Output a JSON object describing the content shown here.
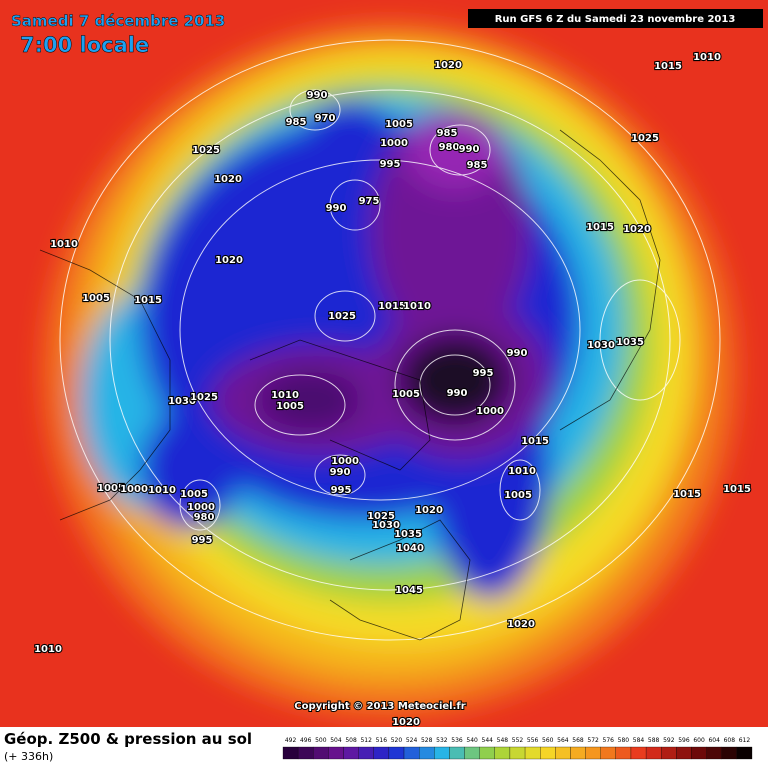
{
  "header": {
    "date": "Samedi 7 décembre 2013",
    "time": "7:00 locale",
    "run": "Run GFS 6 Z du Samedi 23 novembre 2013"
  },
  "map": {
    "pressure_labels": [
      1020,
      1015,
      1010,
      990,
      970,
      985,
      1005,
      985,
      980,
      990,
      1000,
      1025,
      995,
      985,
      1020,
      1025,
      975,
      990,
      1010,
      1020,
      1015,
      1020,
      1005,
      1015,
      1025,
      1015,
      1010,
      990,
      1030,
      1035,
      995,
      990,
      1005,
      1000,
      1010,
      1005,
      1030,
      1025,
      1015,
      1000,
      990,
      995,
      1010,
      1005,
      1015,
      1015,
      1005,
      1000,
      1010,
      1005,
      1000,
      980,
      1020,
      1025,
      1030,
      1035,
      1040,
      1045,
      995,
      1020,
      1010,
      1020
    ],
    "copyright": "Copyright © 2013 Meteociel.fr"
  },
  "footer": {
    "title": "Géop. Z500 & pression au sol",
    "subtitle": "(+ 336h)"
  },
  "colorbar": {
    "ticks": [
      492,
      496,
      500,
      504,
      508,
      512,
      516,
      520,
      524,
      528,
      532,
      536,
      540,
      544,
      548,
      552,
      556,
      560,
      564,
      568,
      572,
      576,
      580,
      584,
      588,
      592,
      596,
      600,
      604,
      608,
      612
    ]
  }
}
